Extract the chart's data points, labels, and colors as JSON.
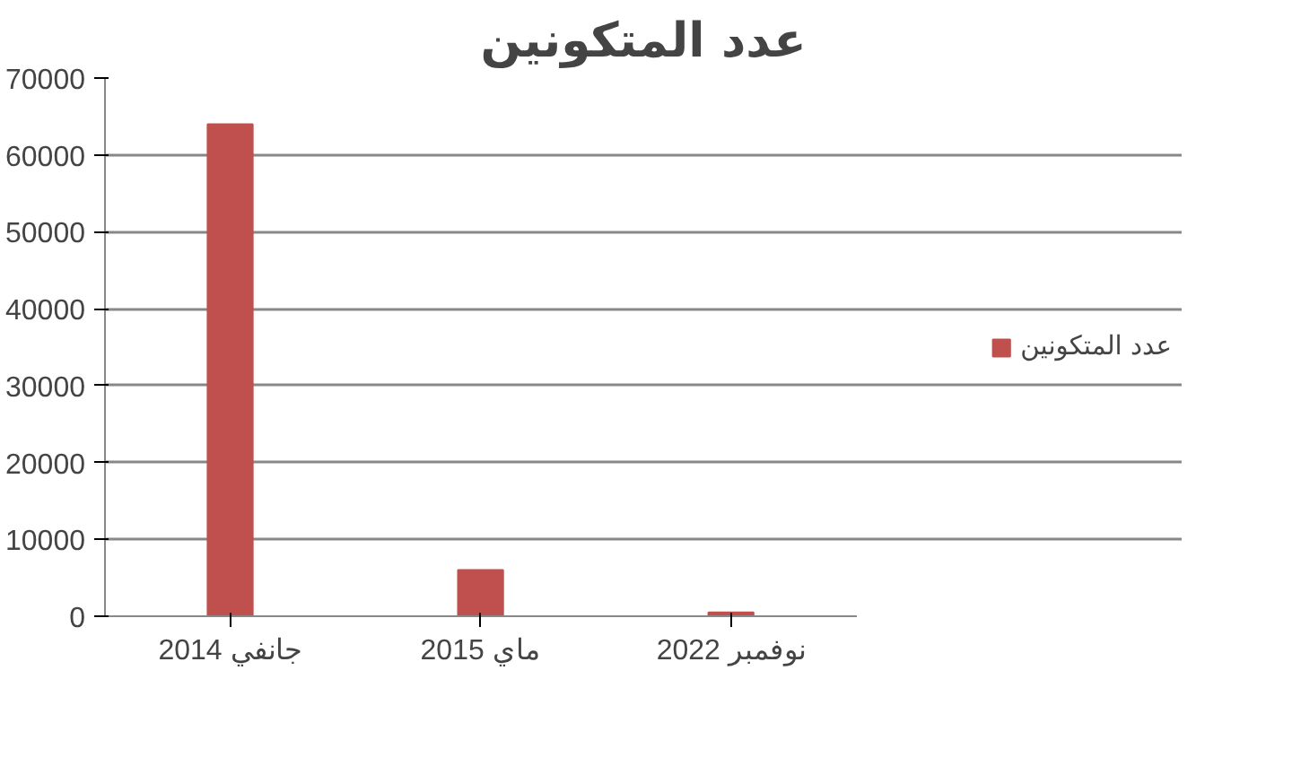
{
  "chart_data": {
    "type": "bar",
    "title": "عدد المتكونين",
    "categories": [
      "جانفي 2014",
      "ماي 2015",
      "نوفمبر 2022"
    ],
    "series": [
      {
        "name": "عدد المتكونين",
        "color": "#c0504d",
        "values": [
          64000,
          6000,
          500
        ]
      }
    ],
    "ylim": [
      0,
      70000
    ],
    "yticks": [
      0,
      10000,
      20000,
      30000,
      40000,
      50000,
      60000,
      70000
    ],
    "grid": "y",
    "legend": "right"
  }
}
